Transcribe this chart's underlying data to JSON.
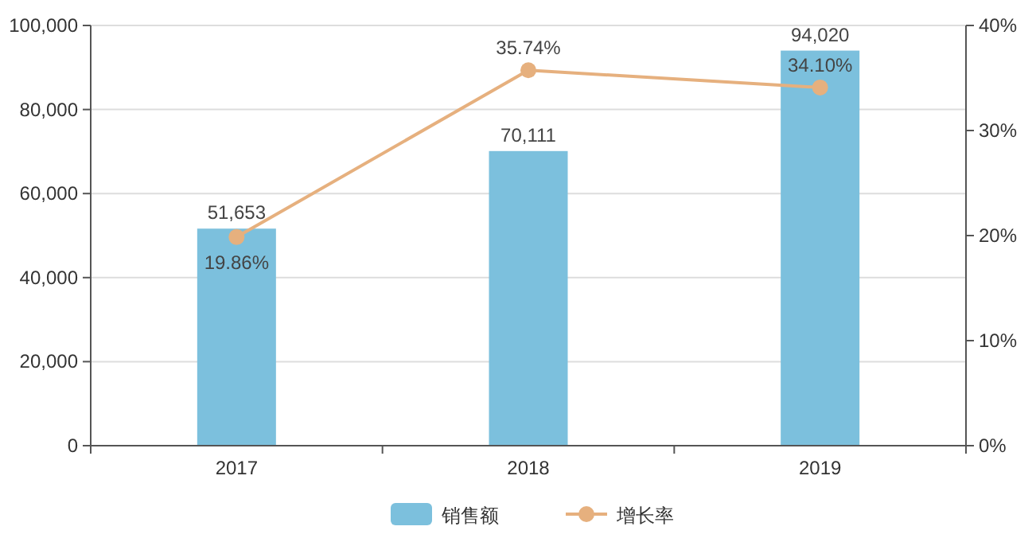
{
  "chart_data": {
    "type": "bar",
    "categories": [
      "2017",
      "2018",
      "2019"
    ],
    "series": [
      {
        "name": "销售额",
        "color": "#7cc0dd",
        "values": [
          51653,
          70111,
          94020
        ],
        "value_labels": [
          "51,653",
          "70,111",
          "94,020"
        ]
      },
      {
        "name": "增长率",
        "type": "line",
        "axis": "y2",
        "color": "#e6b07e",
        "values": [
          19.86,
          35.74,
          34.1
        ],
        "value_labels": [
          "19.86%",
          "35.74%",
          "34.10%"
        ]
      }
    ],
    "ylim": [
      0,
      100000
    ],
    "yticks": [
      {
        "value": 0,
        "label": "0"
      },
      {
        "value": 20000,
        "label": "20,000"
      },
      {
        "value": 40000,
        "label": "40,000"
      },
      {
        "value": 60000,
        "label": "60,000"
      },
      {
        "value": 80000,
        "label": "80,000"
      },
      {
        "value": 100000,
        "label": "100,000"
      }
    ],
    "y2lim": [
      0,
      40
    ],
    "y2ticks": [
      {
        "value": 0,
        "label": "0%"
      },
      {
        "value": 10,
        "label": "10%"
      },
      {
        "value": 20,
        "label": "20%"
      },
      {
        "value": 30,
        "label": "30%"
      },
      {
        "value": 40,
        "label": "40%"
      }
    ],
    "grid": "y",
    "legend": "bottom",
    "marker": "circle",
    "line_style": "solid"
  }
}
